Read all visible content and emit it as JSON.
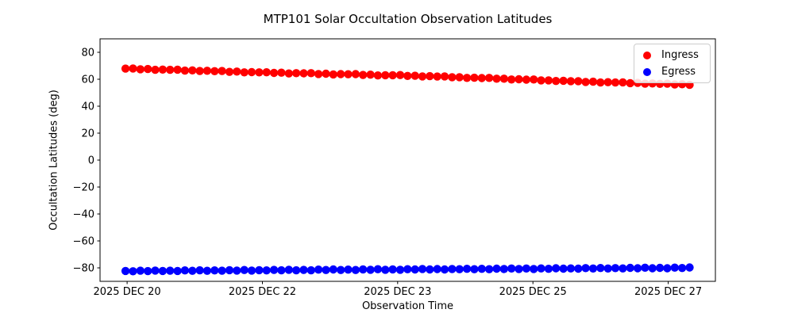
{
  "chart_data": {
    "type": "scatter",
    "title": "MTP101 Solar Occultation Observation Latitudes",
    "xlabel": "Observation Time",
    "ylabel": "Occultation Latitudes (deg)",
    "grid": false,
    "x_axis": {
      "xlim": [
        -0.1,
        7.86
      ],
      "units": "days relative to first tick date",
      "tick_positions": [
        0.25,
        2.0,
        3.75,
        5.5,
        7.25
      ],
      "tick_labels": [
        "2025 DEC 20",
        "2025 DEC 22",
        "2025 DEC 23",
        "2025 DEC 25",
        "2025 DEC 27"
      ]
    },
    "y_axis": {
      "ylim": [
        -90,
        90
      ],
      "tick_positions": [
        80,
        60,
        40,
        20,
        0,
        -20,
        -40,
        -60,
        -80
      ],
      "tick_labels": [
        "80",
        "60",
        "40",
        "20",
        "0",
        "−20",
        "−40",
        "−60",
        "−80"
      ]
    },
    "x_start_days": 0.23,
    "x_step_days": 0.096,
    "legend": {
      "position": "upper right",
      "entries": [
        "Ingress",
        "Egress"
      ]
    },
    "series": [
      {
        "name": "Ingress",
        "color": "#ff0000",
        "marker": "circle",
        "values": [
          67.9,
          68.0,
          67.4,
          67.6,
          67.0,
          67.2,
          67.0,
          67.1,
          66.4,
          66.6,
          66.1,
          66.3,
          66.0,
          66.1,
          65.5,
          65.7,
          65.1,
          65.3,
          65.1,
          65.2,
          64.7,
          64.9,
          64.3,
          64.5,
          64.4,
          64.5,
          63.9,
          64.1,
          63.6,
          63.8,
          63.7,
          63.8,
          63.2,
          63.4,
          62.8,
          63.0,
          63.0,
          63.1,
          62.5,
          62.6,
          62.1,
          62.3,
          62.0,
          62.1,
          61.5,
          61.5,
          61.0,
          61.1,
          60.9,
          61.0,
          60.4,
          60.4,
          59.8,
          60.0,
          59.7,
          59.8,
          59.2,
          59.2,
          58.7,
          58.9,
          58.6,
          58.6,
          58.0,
          58.2,
          57.6,
          57.8,
          57.6,
          57.7,
          57.1,
          57.3,
          56.7,
          56.9,
          56.6,
          56.7,
          56.1,
          56.3,
          55.8
        ]
      },
      {
        "name": "Egress",
        "color": "#0000ff",
        "marker": "circle",
        "values": [
          -82.3,
          -82.5,
          -82.1,
          -82.4,
          -82.0,
          -82.3,
          -82.1,
          -82.3,
          -81.9,
          -82.2,
          -81.8,
          -82.2,
          -81.9,
          -82.1,
          -81.7,
          -82.0,
          -81.6,
          -82.0,
          -81.7,
          -81.9,
          -81.5,
          -81.8,
          -81.4,
          -81.8,
          -81.5,
          -81.8,
          -81.3,
          -81.6,
          -81.2,
          -81.6,
          -81.3,
          -81.6,
          -81.1,
          -81.4,
          -81.0,
          -81.4,
          -81.1,
          -81.4,
          -81.0,
          -81.2,
          -80.8,
          -81.2,
          -80.9,
          -81.2,
          -80.8,
          -81.0,
          -80.7,
          -81.0,
          -80.7,
          -81.0,
          -80.6,
          -80.8,
          -80.5,
          -80.8,
          -80.5,
          -80.8,
          -80.4,
          -80.7,
          -80.3,
          -80.6,
          -80.4,
          -80.6,
          -80.2,
          -80.5,
          -80.1,
          -80.5,
          -80.2,
          -80.4,
          -80.0,
          -80.3,
          -79.9,
          -80.3,
          -80.0,
          -80.3,
          -79.8,
          -80.1,
          -79.7
        ]
      }
    ]
  }
}
